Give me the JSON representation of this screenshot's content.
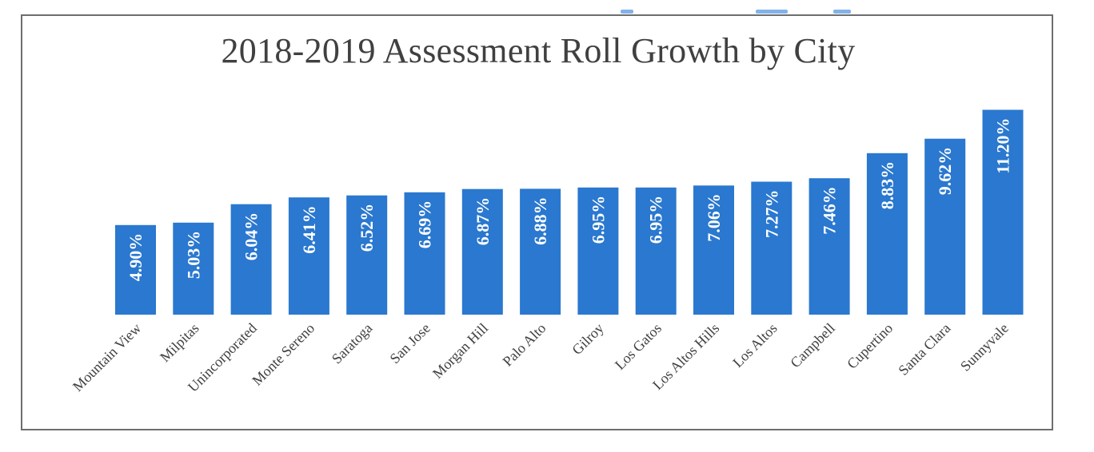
{
  "chart_data": {
    "type": "bar",
    "title": "2018-2019 Assessment Roll Growth by City",
    "xlabel": "",
    "ylabel": "",
    "categories": [
      "Mountain View",
      "Milpitas",
      "Unincorporated",
      "Monte Sereno",
      "Saratoga",
      "San Jose",
      "Morgan Hill",
      "Palo Alto",
      "Gilroy",
      "Los Gatos",
      "Los Altos Hills",
      "Los Altos",
      "Campbell",
      "Cupertino",
      "Santa Clara",
      "Sunnyvale"
    ],
    "values": [
      4.9,
      5.03,
      6.04,
      6.41,
      6.52,
      6.69,
      6.87,
      6.88,
      6.95,
      6.95,
      7.06,
      7.27,
      7.46,
      8.83,
      9.62,
      11.2
    ],
    "value_labels": [
      "4.90%",
      "5.03%",
      "6.04%",
      "6.41%",
      "6.52%",
      "6.69%",
      "6.87%",
      "6.88%",
      "6.95%",
      "6.95%",
      "7.06%",
      "7.27%",
      "7.46%",
      "8.83%",
      "9.62%",
      "11.20%"
    ],
    "bar_color": "#2a78cf",
    "grid": false,
    "legend": "none"
  }
}
